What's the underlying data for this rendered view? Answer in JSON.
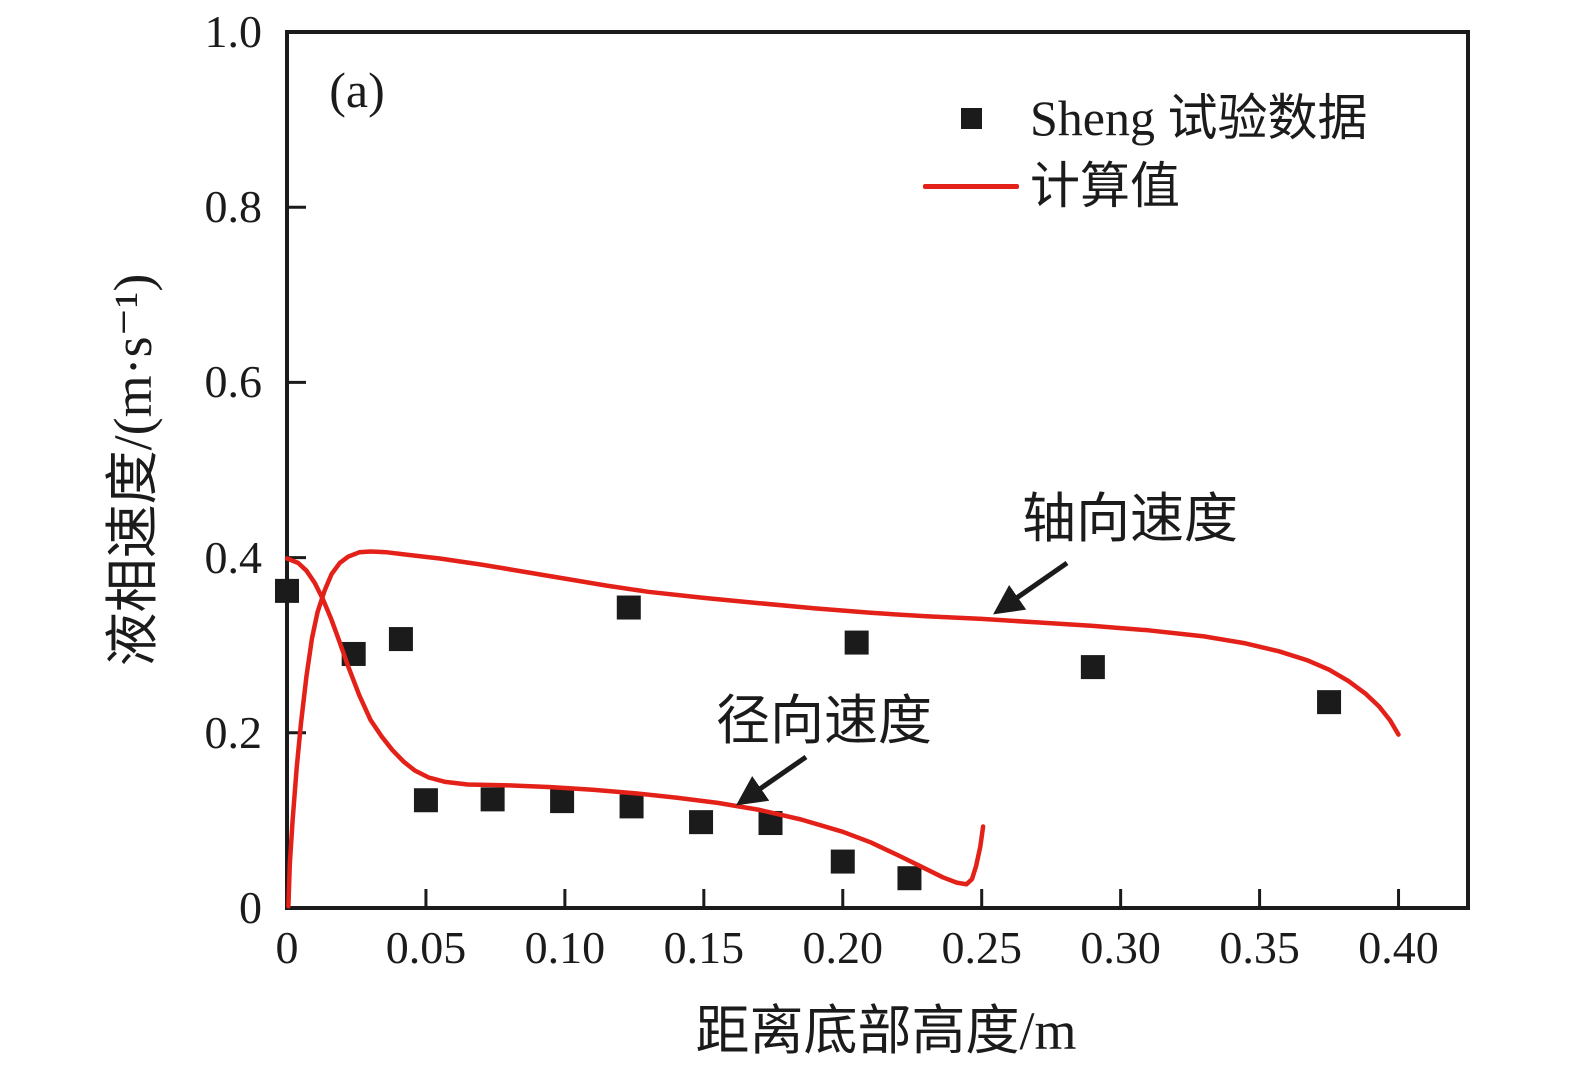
{
  "panel_label": "(a)",
  "colors": {
    "curve_red": "#e32119",
    "marker_black": "#1b1b1b",
    "axis_black": "#1b1b1b",
    "background": "#ffffff"
  },
  "legend": {
    "items": [
      {
        "marker": "square",
        "label": "Sheng 试验数据"
      },
      {
        "marker": "line",
        "label": "计算值"
      }
    ]
  },
  "annotations": [
    {
      "text": "轴向速度"
    },
    {
      "text": "径向速度"
    }
  ],
  "chart_data": {
    "type": "scatter",
    "title": "",
    "xlabel": "距离底部高度/m",
    "ylabel": "液相速度/(m·s⁻¹)",
    "xlim": [
      0,
      0.425
    ],
    "ylim": [
      0,
      1.0
    ],
    "grid": false,
    "legend_position": "top-right-inside",
    "x_ticks": [
      {
        "v": 0,
        "label": "0"
      },
      {
        "v": 0.05,
        "label": "0.05"
      },
      {
        "v": 0.1,
        "label": "0.10"
      },
      {
        "v": 0.15,
        "label": "0.15"
      },
      {
        "v": 0.2,
        "label": "0.20"
      },
      {
        "v": 0.25,
        "label": "0.25"
      },
      {
        "v": 0.3,
        "label": "0.30"
      },
      {
        "v": 0.35,
        "label": "0.35"
      },
      {
        "v": 0.4,
        "label": "0.40"
      }
    ],
    "y_ticks": [
      {
        "v": 0,
        "label": "0"
      },
      {
        "v": 0.2,
        "label": "0.2"
      },
      {
        "v": 0.4,
        "label": "0.4"
      },
      {
        "v": 0.6,
        "label": "0.6"
      },
      {
        "v": 0.8,
        "label": "0.8"
      },
      {
        "v": 1.0,
        "label": "1.0"
      }
    ],
    "series": [
      {
        "name": "Sheng 试验数据",
        "type": "scatter",
        "marker": "square",
        "color": "#1b1b1b",
        "points": [
          [
            0.0,
            0.362
          ],
          [
            0.024,
            0.29
          ],
          [
            0.041,
            0.307
          ],
          [
            0.05,
            0.123
          ],
          [
            0.074,
            0.124
          ],
          [
            0.099,
            0.122
          ],
          [
            0.123,
            0.343
          ],
          [
            0.124,
            0.116
          ],
          [
            0.149,
            0.098
          ],
          [
            0.174,
            0.097
          ],
          [
            0.2,
            0.053
          ],
          [
            0.205,
            0.303
          ],
          [
            0.224,
            0.034
          ],
          [
            0.29,
            0.275
          ],
          [
            0.375,
            0.235
          ]
        ]
      },
      {
        "name": "计算值（轴向速度）",
        "type": "line",
        "color": "#e32119",
        "points": [
          [
            0.0005,
            0.002
          ],
          [
            0.001,
            0.05
          ],
          [
            0.002,
            0.1
          ],
          [
            0.0035,
            0.16
          ],
          [
            0.005,
            0.21
          ],
          [
            0.007,
            0.265
          ],
          [
            0.009,
            0.308
          ],
          [
            0.011,
            0.338
          ],
          [
            0.0135,
            0.362
          ],
          [
            0.016,
            0.381
          ],
          [
            0.019,
            0.394
          ],
          [
            0.022,
            0.401
          ],
          [
            0.026,
            0.406
          ],
          [
            0.03,
            0.407
          ],
          [
            0.036,
            0.406
          ],
          [
            0.044,
            0.403
          ],
          [
            0.055,
            0.399
          ],
          [
            0.07,
            0.392
          ],
          [
            0.085,
            0.384
          ],
          [
            0.1,
            0.376
          ],
          [
            0.115,
            0.368
          ],
          [
            0.13,
            0.361
          ],
          [
            0.15,
            0.354
          ],
          [
            0.17,
            0.348
          ],
          [
            0.19,
            0.342
          ],
          [
            0.21,
            0.337
          ],
          [
            0.23,
            0.333
          ],
          [
            0.25,
            0.33
          ],
          [
            0.27,
            0.326
          ],
          [
            0.29,
            0.322
          ],
          [
            0.31,
            0.317
          ],
          [
            0.33,
            0.31
          ],
          [
            0.345,
            0.302
          ],
          [
            0.357,
            0.293
          ],
          [
            0.367,
            0.283
          ],
          [
            0.375,
            0.272
          ],
          [
            0.382,
            0.259
          ],
          [
            0.388,
            0.245
          ],
          [
            0.393,
            0.23
          ],
          [
            0.397,
            0.214
          ],
          [
            0.4,
            0.198
          ]
        ]
      },
      {
        "name": "计算值（径向速度）",
        "type": "line",
        "color": "#e32119",
        "points": [
          [
            0.0,
            0.399
          ],
          [
            0.004,
            0.394
          ],
          [
            0.007,
            0.385
          ],
          [
            0.01,
            0.371
          ],
          [
            0.013,
            0.352
          ],
          [
            0.016,
            0.329
          ],
          [
            0.019,
            0.303
          ],
          [
            0.022,
            0.276
          ],
          [
            0.026,
            0.243
          ],
          [
            0.03,
            0.215
          ],
          [
            0.034,
            0.196
          ],
          [
            0.038,
            0.18
          ],
          [
            0.042,
            0.167
          ],
          [
            0.046,
            0.157
          ],
          [
            0.051,
            0.149
          ],
          [
            0.057,
            0.144
          ],
          [
            0.065,
            0.141
          ],
          [
            0.08,
            0.14
          ],
          [
            0.095,
            0.138
          ],
          [
            0.11,
            0.135
          ],
          [
            0.125,
            0.131
          ],
          [
            0.14,
            0.126
          ],
          [
            0.155,
            0.12
          ],
          [
            0.17,
            0.112
          ],
          [
            0.185,
            0.101
          ],
          [
            0.2,
            0.087
          ],
          [
            0.21,
            0.075
          ],
          [
            0.22,
            0.06
          ],
          [
            0.229,
            0.046
          ],
          [
            0.236,
            0.035
          ],
          [
            0.241,
            0.029
          ],
          [
            0.2445,
            0.027
          ],
          [
            0.2465,
            0.033
          ],
          [
            0.248,
            0.048
          ],
          [
            0.2495,
            0.07
          ],
          [
            0.2505,
            0.093
          ]
        ]
      }
    ]
  }
}
